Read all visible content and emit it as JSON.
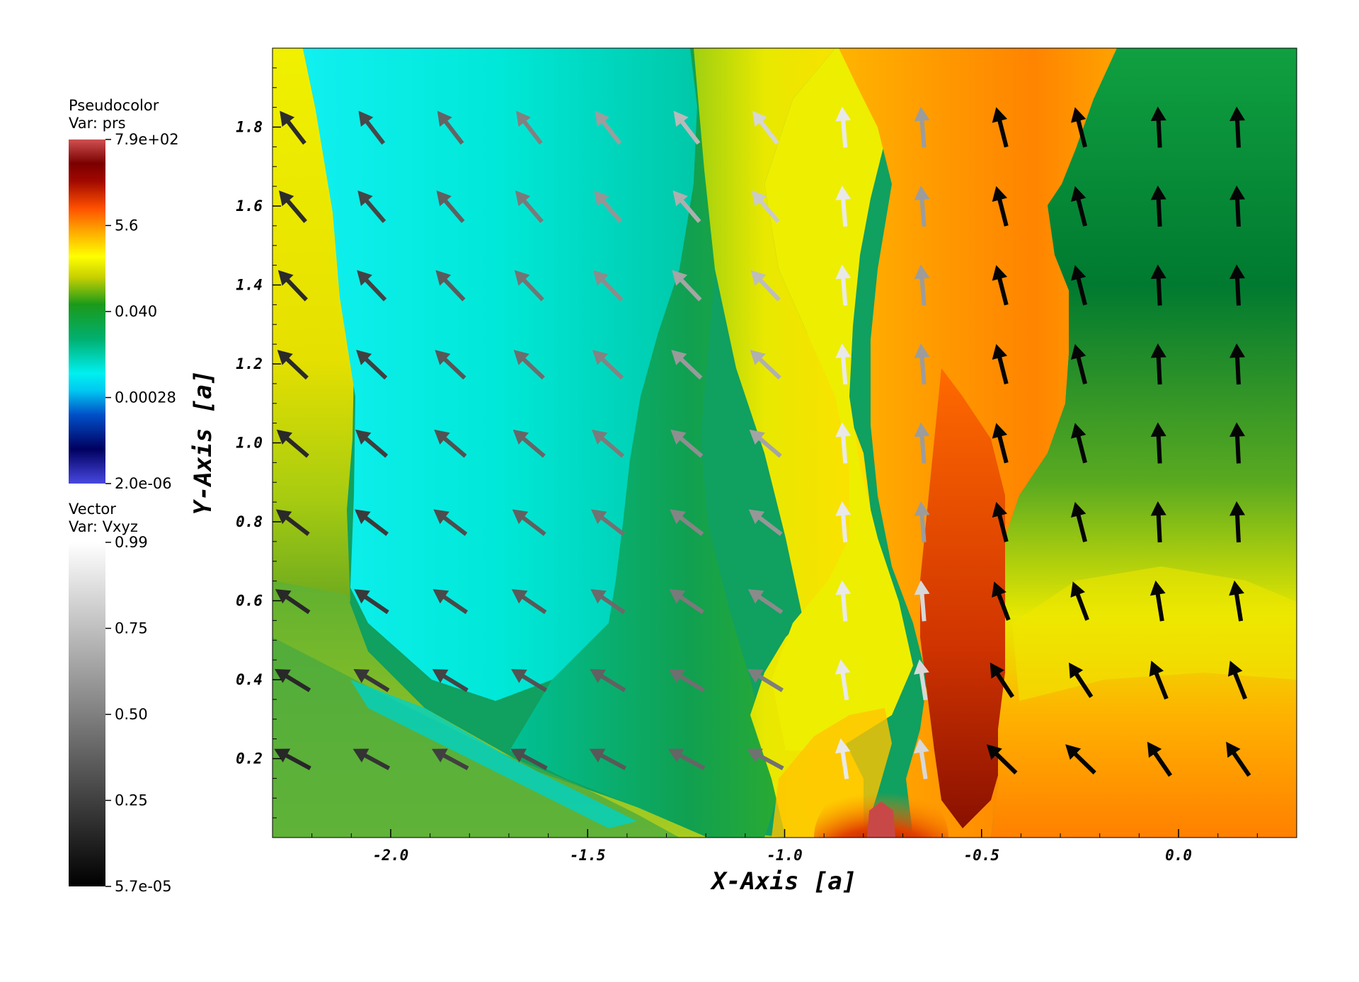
{
  "chart_data": {
    "type": "heatmap",
    "xlabel": "X-Axis [a]",
    "ylabel": "Y-Axis [a]",
    "xlim": [
      -2.3,
      0.3
    ],
    "ylim": [
      0.0,
      2.0
    ],
    "x_ticks": [
      -2.0,
      -1.5,
      -1.0,
      -0.5,
      0.0
    ],
    "x_tick_labels": [
      "-2.0",
      "-1.5",
      "-1.0",
      "-0.5",
      "0.0"
    ],
    "y_ticks": [
      0.2,
      0.4,
      0.6,
      0.8,
      1.0,
      1.2,
      1.4,
      1.6,
      1.8
    ],
    "y_tick_labels": [
      "0.2",
      "0.4",
      "0.6",
      "0.8",
      "1.0",
      "1.2",
      "1.4",
      "1.6",
      "1.8"
    ],
    "pseudocolor": {
      "title": "Pseudocolor",
      "var_label": "Var: prs",
      "scale": "log",
      "min": 2e-06,
      "max": 790,
      "labels": [
        "7.9e+02",
        "5.6",
        "0.040",
        "0.00028",
        "2.0e-06"
      ],
      "colormap": [
        "#4444dd",
        "#000066",
        "#0055cc",
        "#00ffff",
        "#00a060",
        "#1a9a1a",
        "#cccc00",
        "#ffff00",
        "#ff8800",
        "#ff3300",
        "#7a0000",
        "#cc4444"
      ],
      "field_regions": [
        {
          "region": "left rim x < -2.1",
          "value": "0.040 to 5.6",
          "color": "#d8d800"
        },
        {
          "region": "shocked cone -2.1 < x < -1.3",
          "value": "0.00028",
          "color": "#00e8e0"
        },
        {
          "region": "middle band -1.3 < x < -0.95",
          "value": "0.040",
          "color": "#119955"
        },
        {
          "region": "jet -0.9 < x < -0.3",
          "value": "5.6",
          "color": "#ff8a00"
        },
        {
          "region": "right region x > -0.3, y > 0.8",
          "value": "0.040",
          "color": "#00883a"
        },
        {
          "region": "right region x > -0.3, y < 0.6",
          "value": "5.6",
          "color": "#ff8000"
        },
        {
          "region": "source at x = -0.75, y = 0",
          "value": "7.9e+02",
          "color": "#c04040"
        }
      ]
    },
    "vector": {
      "title": "Vector",
      "var_label": "Var: Vxyz",
      "min": 5.7e-05,
      "max": 0.99,
      "labels": [
        "0.99",
        "0.75",
        "0.50",
        "0.25",
        "5.7e-05"
      ],
      "colormap": [
        "#000000",
        "#ffffff"
      ],
      "arrow_grid_x": [
        -2.25,
        -2.05,
        -1.85,
        -1.65,
        -1.45,
        -1.25,
        -1.05,
        -0.85,
        -0.65,
        -0.45,
        -0.25,
        -0.05,
        0.15
      ],
      "arrow_grid_y": [
        0.2,
        0.4,
        0.6,
        0.8,
        1.0,
        1.2,
        1.4,
        1.6,
        1.8
      ]
    }
  }
}
